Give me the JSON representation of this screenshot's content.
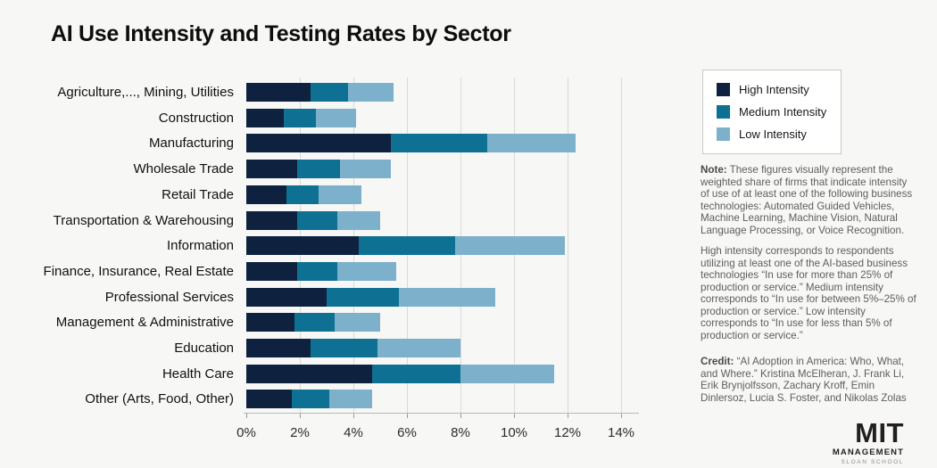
{
  "page": {
    "title": "AI Use Intensity and Testing Rates by Sector",
    "background_color": "#f7f7f5"
  },
  "legend": {
    "items": [
      {
        "label": "High Intensity",
        "color": "#0e2240"
      },
      {
        "label": "Medium Intensity",
        "color": "#0e7092"
      },
      {
        "label": "Low Intensity",
        "color": "#7db1cb"
      }
    ]
  },
  "chart_data": {
    "type": "bar",
    "orientation": "horizontal",
    "stacked": true,
    "grid": "vertical",
    "xlim": [
      0,
      14.7
    ],
    "x_tick_values": [
      0,
      2,
      4,
      6,
      8,
      10,
      12,
      14
    ],
    "x_tick_labels": [
      "0%",
      "2%",
      "4%",
      "6%",
      "8%",
      "10%",
      "12%",
      "14%"
    ],
    "categories": [
      "Agriculture,..., Mining, Utilities",
      "Construction",
      "Manufacturing",
      "Wholesale Trade",
      "Retail Trade",
      "Transportation & Warehousing",
      "Information",
      "Finance, Insurance, Real Estate",
      "Professional Services",
      "Management & Administrative",
      "Education",
      "Health Care",
      "Other (Arts, Food, Other)"
    ],
    "series": [
      {
        "name": "High Intensity",
        "color": "#0e2240",
        "values": [
          2.4,
          1.4,
          5.4,
          1.9,
          1.5,
          1.9,
          4.2,
          1.9,
          3.0,
          1.8,
          2.4,
          4.7,
          1.7
        ]
      },
      {
        "name": "Medium Intensity",
        "color": "#0e7092",
        "values": [
          1.4,
          1.2,
          3.6,
          1.6,
          1.2,
          1.5,
          3.6,
          1.5,
          2.7,
          1.5,
          2.5,
          3.3,
          1.4
        ]
      },
      {
        "name": "Low Intensity",
        "color": "#7db1cb",
        "values": [
          1.7,
          1.5,
          3.3,
          1.9,
          1.6,
          1.6,
          4.1,
          2.2,
          3.6,
          1.7,
          3.1,
          3.5,
          1.6
        ]
      }
    ]
  },
  "notes": {
    "note_label": "Note:",
    "paragraph1": "These figures visually represent the weighted share of firms that indicate intensity of use of at least one of the following business technologies: Automated Guided Vehicles, Machine Learning, Machine Vision, Natural Language Processing, or Voice Recognition.",
    "paragraph2": "High intensity corresponds to respondents utilizing at least one of the AI-based business technologies “In use for more than 25% of production or service.” Medium intensity corresponds to “In use for between 5%–25% of production or service.” Low intensity corresponds to “In use for less than 5% of production or service.”"
  },
  "credit": {
    "credit_label": "Credit:",
    "text": "“AI Adoption in America: Who, What, and Where.” Kristina McElheran, J. Frank Li, Erik Brynjolfsson, Zachary Kroff, Emin Dinlersoz, Lucia S. Foster, and Nikolas Zolas"
  },
  "logo": {
    "line1": "MIT",
    "line2": "MANAGEMENT",
    "line3": "SLOAN SCHOOL"
  }
}
